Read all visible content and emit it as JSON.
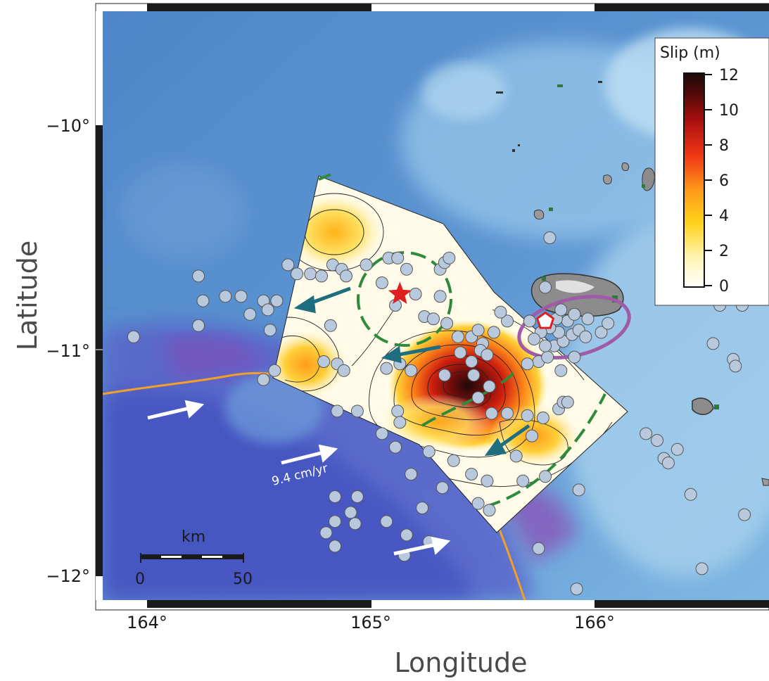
{
  "map": {
    "x_axis": {
      "label": "Longitude",
      "ticks": [
        {
          "value": 164,
          "label": "164°"
        },
        {
          "value": 165,
          "label": "165°"
        },
        {
          "value": 166,
          "label": "166°"
        }
      ],
      "range": [
        163.8,
        166.8
      ]
    },
    "y_axis": {
      "label": "Latitude",
      "ticks": [
        {
          "value": -10,
          "label": "−10°"
        },
        {
          "value": -11,
          "label": "−11°"
        },
        {
          "value": -12,
          "label": "−12°"
        }
      ],
      "range": [
        -12.1,
        -9.45
      ]
    },
    "colorbar": {
      "title": "Slip (m)",
      "ticks": [
        "12",
        "10",
        "8",
        "6",
        "4",
        "2",
        "0"
      ],
      "min": 0,
      "max": 12,
      "colors": [
        "#ffffff",
        "#fff2a8",
        "#ffd21a",
        "#ff9a1a",
        "#f03a14",
        "#b0100e",
        "#5a0a08",
        "#1e0a0a"
      ]
    },
    "scale_bar": {
      "unit": "km",
      "start": "0",
      "end": "50"
    },
    "plate_rate_label": "9.4 cm/yr",
    "symbols": {
      "epicenter": {
        "type": "star",
        "color": "#e02020",
        "lon": 165.13,
        "lat": -10.75
      },
      "station": {
        "type": "pentagon",
        "color": "#e02020",
        "lon": 165.78,
        "lat": -10.87
      },
      "aftershock_color": "#b9c9dd",
      "trench_color": "#f2a02a",
      "asperity_color": "#2e8b3c",
      "cluster_color": "#a05aa8",
      "slip_arrow_color": "#1f6e80",
      "plate_arrow_color": "#ffffff"
    },
    "aftershocks": [
      [
        163.94,
        -10.94
      ],
      [
        164.23,
        -10.67
      ],
      [
        164.23,
        -10.89
      ],
      [
        164.25,
        -10.78
      ],
      [
        164.35,
        -10.76
      ],
      [
        164.42,
        -10.76
      ],
      [
        164.46,
        -10.84
      ],
      [
        164.52,
        -10.78
      ],
      [
        164.54,
        -10.82
      ],
      [
        164.58,
        -10.78
      ],
      [
        164.55,
        -10.91
      ],
      [
        164.52,
        -11.13
      ],
      [
        164.63,
        -10.62
      ],
      [
        164.67,
        -10.66
      ],
      [
        164.73,
        -10.66
      ],
      [
        164.78,
        -10.67
      ],
      [
        164.83,
        -10.62
      ],
      [
        164.87,
        -10.64
      ],
      [
        164.89,
        -10.67
      ],
      [
        164.98,
        -10.62
      ],
      [
        165.08,
        -10.59
      ],
      [
        165.12,
        -10.59
      ],
      [
        165.16,
        -10.64
      ],
      [
        165.05,
        -10.7
      ],
      [
        165.11,
        -10.8
      ],
      [
        165.2,
        -10.75
      ],
      [
        165.24,
        -10.85
      ],
      [
        165.28,
        -10.86
      ],
      [
        165.31,
        -10.64
      ],
      [
        165.33,
        -10.61
      ],
      [
        165.35,
        -10.59
      ],
      [
        165.31,
        -10.76
      ],
      [
        165.34,
        -10.88
      ],
      [
        165.39,
        -10.94
      ],
      [
        165.45,
        -10.94
      ],
      [
        165.48,
        -10.91
      ],
      [
        165.5,
        -10.97
      ],
      [
        165.55,
        -10.92
      ],
      [
        165.61,
        -10.87
      ],
      [
        165.58,
        -10.83
      ],
      [
        165.4,
        -11.01
      ],
      [
        165.45,
        -11.05
      ],
      [
        165.49,
        -11.0
      ],
      [
        165.52,
        -11.02
      ],
      [
        164.82,
        -10.89
      ],
      [
        164.79,
        -11.05
      ],
      [
        164.85,
        -11.06
      ],
      [
        164.88,
        -11.09
      ],
      [
        164.57,
        -11.09
      ],
      [
        165.07,
        -11.08
      ],
      [
        165.13,
        -11.06
      ],
      [
        165.18,
        -11.09
      ],
      [
        165.33,
        -11.11
      ],
      [
        165.46,
        -11.11
      ],
      [
        165.53,
        -11.16
      ],
      [
        165.48,
        -11.21
      ],
      [
        165.54,
        -11.28
      ],
      [
        165.61,
        -11.28
      ],
      [
        165.7,
        -11.29
      ],
      [
        165.77,
        -11.3
      ],
      [
        165.84,
        -11.26
      ],
      [
        165.86,
        -11.23
      ],
      [
        165.72,
        -11.38
      ],
      [
        165.65,
        -11.47
      ],
      [
        165.68,
        -11.58
      ],
      [
        165.78,
        -11.56
      ],
      [
        165.88,
        -11.23
      ],
      [
        165.85,
        -11.09
      ],
      [
        165.91,
        -11.03
      ],
      [
        165.75,
        -11.05
      ],
      [
        165.7,
        -11.06
      ],
      [
        165.79,
        -11.03
      ],
      [
        165.82,
        -10.98
      ],
      [
        165.86,
        -10.96
      ],
      [
        165.9,
        -10.93
      ],
      [
        165.93,
        -10.91
      ],
      [
        165.96,
        -10.94
      ],
      [
        166.03,
        -10.92
      ],
      [
        166.06,
        -10.88
      ],
      [
        165.97,
        -10.86
      ],
      [
        165.88,
        -10.87
      ],
      [
        165.84,
        -10.92
      ],
      [
        165.8,
        -10.9
      ],
      [
        165.76,
        -10.92
      ],
      [
        165.71,
        -10.87
      ],
      [
        165.73,
        -10.95
      ],
      [
        165.78,
        -10.98
      ],
      [
        165.83,
        -10.86
      ],
      [
        165.85,
        -10.82
      ],
      [
        165.91,
        -10.84
      ],
      [
        165.78,
        -10.72
      ],
      [
        165.8,
        -10.5
      ],
      [
        165.12,
        -11.27
      ],
      [
        165.13,
        -11.32
      ],
      [
        165.05,
        -11.37
      ],
      [
        164.94,
        -11.27
      ],
      [
        164.85,
        -11.27
      ],
      [
        165.11,
        -11.43
      ],
      [
        165.18,
        -11.55
      ],
      [
        165.26,
        -11.45
      ],
      [
        165.37,
        -11.49
      ],
      [
        165.45,
        -11.55
      ],
      [
        165.52,
        -11.58
      ],
      [
        165.48,
        -11.68
      ],
      [
        165.53,
        -11.71
      ],
      [
        165.32,
        -11.61
      ],
      [
        165.23,
        -11.7
      ],
      [
        164.94,
        -11.65
      ],
      [
        164.91,
        -11.72
      ],
      [
        164.93,
        -11.77
      ],
      [
        164.84,
        -11.65
      ],
      [
        164.84,
        -11.76
      ],
      [
        164.8,
        -11.81
      ],
      [
        164.84,
        -11.87
      ],
      [
        165.07,
        -11.76
      ],
      [
        165.16,
        -11.82
      ],
      [
        165.26,
        -11.85
      ],
      [
        165.15,
        -11.91
      ],
      [
        165.75,
        -11.88
      ],
      [
        165.93,
        -11.62
      ],
      [
        166.23,
        -11.37
      ],
      [
        166.28,
        -11.4
      ],
      [
        166.31,
        -11.48
      ],
      [
        166.33,
        -11.5
      ],
      [
        166.37,
        -11.44
      ],
      [
        166.43,
        -11.64
      ],
      [
        166.48,
        -11.97
      ],
      [
        166.53,
        -10.97
      ],
      [
        166.62,
        -11.04
      ],
      [
        166.63,
        -11.07
      ],
      [
        166.67,
        -11.73
      ],
      [
        166.66,
        -10.8
      ],
      [
        166.56,
        -10.8
      ],
      [
        165.92,
        -12.06
      ]
    ]
  }
}
